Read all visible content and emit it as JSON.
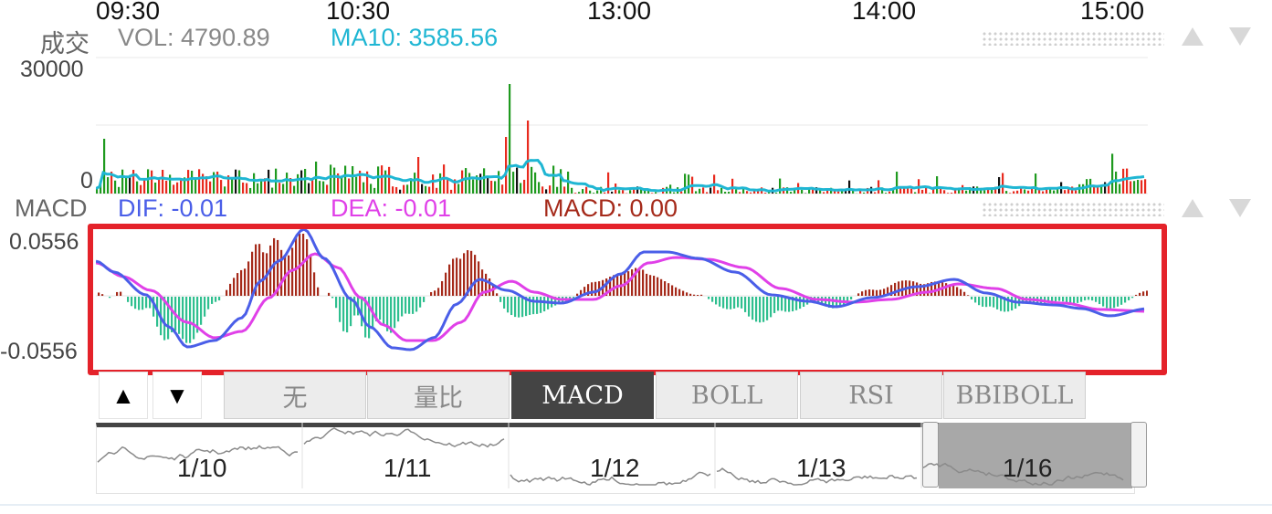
{
  "times": [
    "09:30",
    "10:30",
    "13:00",
    "14:00",
    "15:00"
  ],
  "volume": {
    "title": "成交",
    "vol_label": "VOL: 4790.89",
    "ma10_label": "MA10: 3585.56",
    "y_max": "30000",
    "y_min": "0",
    "ma10_color": "#1fb6d3"
  },
  "macd": {
    "title": "MACD",
    "dif_label": "DIF: -0.01",
    "dea_label": "DEA: -0.01",
    "macd_label": "MACD: 0.00",
    "y_max": "0.0556",
    "y_min": "-0.0556",
    "dif_color": "#4a5ee8",
    "dea_color": "#e040e8",
    "pos_color": "#a52a1a",
    "neg_color": "#2fbf8f"
  },
  "controls": {
    "up_symbol": "▲",
    "down_symbol": "▼"
  },
  "tabs": [
    {
      "label": "无",
      "active": false
    },
    {
      "label": "量比",
      "active": false
    },
    {
      "label": "MACD",
      "active": true
    },
    {
      "label": "BOLL",
      "active": false
    },
    {
      "label": "RSI",
      "active": false
    },
    {
      "label": "BBIBOLL",
      "active": false
    }
  ],
  "days": [
    "1/10",
    "1/11",
    "1/12",
    "1/13",
    "1/16"
  ],
  "highlight_color": "#e4222a"
}
